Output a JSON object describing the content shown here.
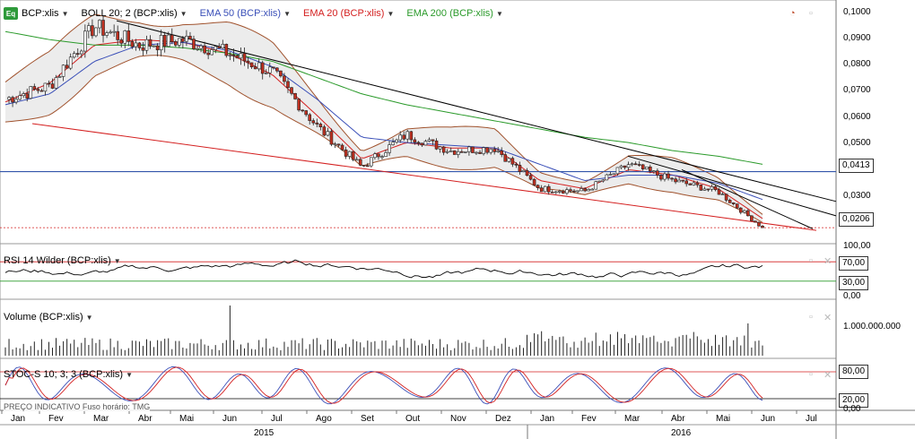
{
  "header": {
    "symbol": "BCP:xlis",
    "eq_icon": "Eq",
    "indicators": [
      {
        "label": "BOLL 20; 2 (BCP:xlis)",
        "color": "#000000"
      },
      {
        "label": "EMA 50 (BCP:xlis)",
        "color": "#3a4fb8"
      },
      {
        "label": "EMA 20 (BCP:xlis)",
        "color": "#d42020"
      },
      {
        "label": "EMA 200 (BCP:xlis)",
        "color": "#2a9a2a"
      }
    ]
  },
  "price_axis": {
    "ticks": [
      "0,1000",
      "0,0900",
      "0,0800",
      "0,0700",
      "0,0600",
      "0,0500",
      "0,0300",
      "0,0200"
    ],
    "last_price": "0,0206",
    "hline_price": "0,0413"
  },
  "rsi": {
    "title": "RSI 14 Wilder (BCP:xlis)",
    "ticks": [
      "100,00",
      "0,00"
    ],
    "upper_box": "70,00",
    "lower_box": "30,00"
  },
  "volume": {
    "title": "Volume (BCP:xlis)",
    "tick": "1.000.000.000"
  },
  "stoch": {
    "title": "STOC-S 10; 3; 3 (BCP:xlis)",
    "upper_box": "80,00",
    "lower_box": "20,00",
    "tick": "0,00"
  },
  "footer_text": "PREÇO INDICATIVO Fuso horário: TMG",
  "x_axis": {
    "months": [
      "Jan",
      "Fev",
      "Mar",
      "Abr",
      "Mai",
      "Jun",
      "Jul",
      "Ago",
      "Set",
      "Out",
      "Nov",
      "Dez",
      "Jan",
      "Fev",
      "Mar",
      "Abr",
      "Mai",
      "Jun",
      "Jul"
    ],
    "years": [
      "2015",
      "2016"
    ]
  },
  "colors": {
    "price_up": "#ffffff",
    "price_down": "#c03020",
    "ema20": "#d42020",
    "ema50": "#3a4fb8",
    "ema200": "#2a9a2a",
    "boll": "#a0522d",
    "hline": "#3355aa",
    "trend_black": "#000000",
    "trend_red": "#d42020"
  },
  "chart_data": [
    {
      "type": "line",
      "title": "BCP:xlis",
      "series": [
        {
          "name": "BCP:xlis",
          "x": [
            "Jan 2015",
            "Fev 2015",
            "Mar 2015",
            "Abr 2015",
            "Mai 2015",
            "Jun 2015",
            "Jul 2015",
            "Ago 2015",
            "Set 2015",
            "Out 2015",
            "Nov 2015",
            "Dez 2015",
            "Jan 2016",
            "Fev 2016",
            "Mar 2016",
            "Abr 2016",
            "Mai 2016",
            "Jun 2016"
          ],
          "values": [
            0.068,
            0.073,
            0.095,
            0.088,
            0.09,
            0.085,
            0.078,
            0.058,
            0.043,
            0.055,
            0.049,
            0.05,
            0.035,
            0.034,
            0.044,
            0.038,
            0.034,
            0.0206
          ]
        },
        {
          "name": "EMA 20 (BCP:xlis)",
          "values": [
            0.067,
            0.074,
            0.088,
            0.09,
            0.089,
            0.085,
            0.077,
            0.062,
            0.046,
            0.052,
            0.05,
            0.05,
            0.038,
            0.035,
            0.042,
            0.04,
            0.035,
            0.024
          ]
        },
        {
          "name": "EMA 50 (BCP:xlis)",
          "values": [
            0.066,
            0.07,
            0.082,
            0.088,
            0.089,
            0.086,
            0.08,
            0.068,
            0.054,
            0.052,
            0.051,
            0.05,
            0.044,
            0.038,
            0.04,
            0.04,
            0.037,
            0.031
          ]
        },
        {
          "name": "EMA 200 (BCP:xlis)",
          "values": [
            0.093,
            0.09,
            0.088,
            0.088,
            0.087,
            0.085,
            0.082,
            0.076,
            0.07,
            0.066,
            0.063,
            0.06,
            0.057,
            0.054,
            0.052,
            0.049,
            0.047,
            0.044
          ]
        }
      ],
      "ylim": [
        0.018,
        0.102
      ]
    },
    {
      "type": "line",
      "title": "RSI 14 Wilder (BCP:xlis)",
      "ylim": [
        0,
        100
      ],
      "levels": [
        70,
        30
      ]
    },
    {
      "type": "bar",
      "title": "Volume (BCP:xlis)"
    },
    {
      "type": "line",
      "title": "STOC-S 10; 3; 3 (BCP:xlis)",
      "ylim": [
        0,
        100
      ],
      "levels": [
        80,
        20
      ]
    }
  ]
}
